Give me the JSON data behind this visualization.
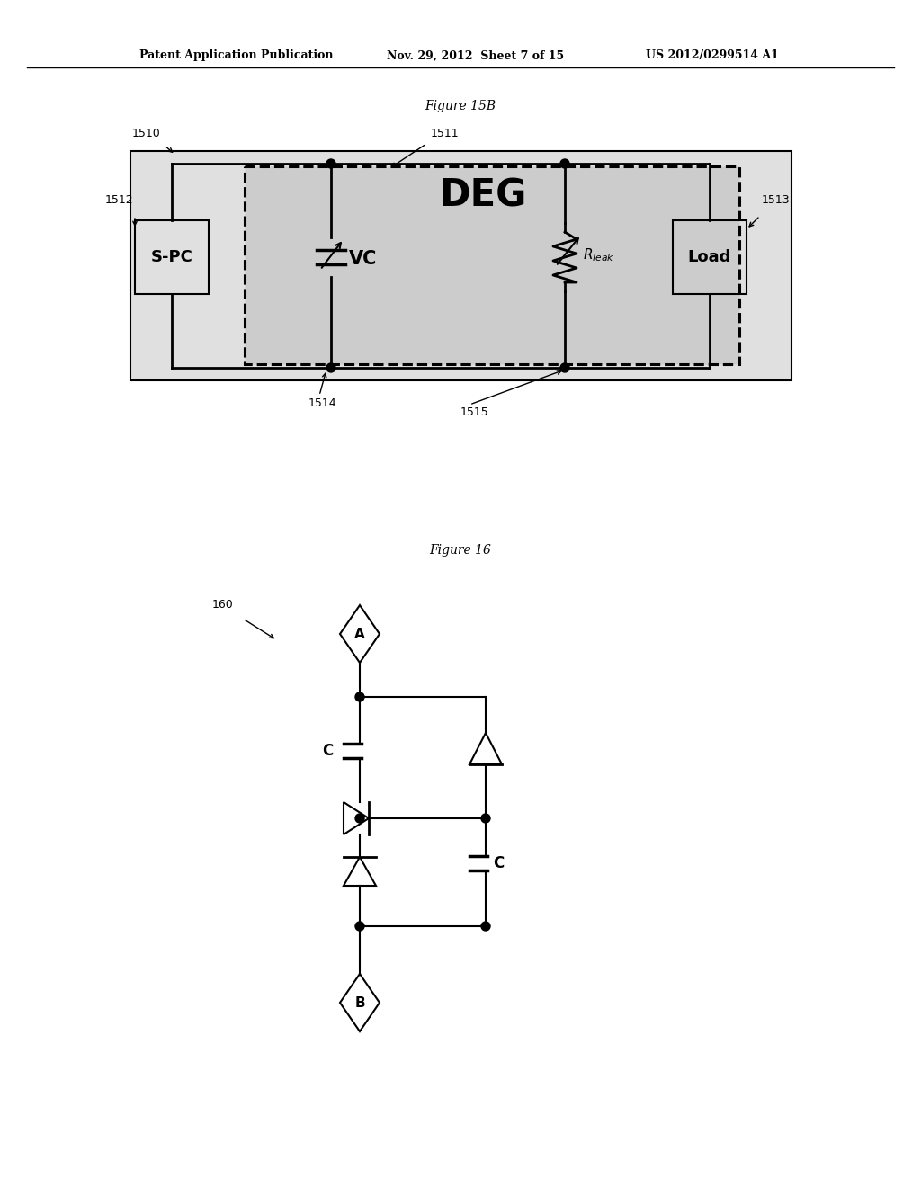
{
  "bg_color": "#ffffff",
  "header_text": "Patent Application Publication",
  "header_date": "Nov. 29, 2012  Sheet 7 of 15",
  "header_patent": "US 2012/0299514 A1",
  "fig1_title": "Figure 15B",
  "fig2_title": "Figure 16",
  "fig1_label": "1510",
  "fig1_label2": "1511",
  "fig1_label3": "1512",
  "fig1_label4": "1513",
  "fig1_label5": "1514",
  "fig1_label6": "1515",
  "fig2_label": "160"
}
